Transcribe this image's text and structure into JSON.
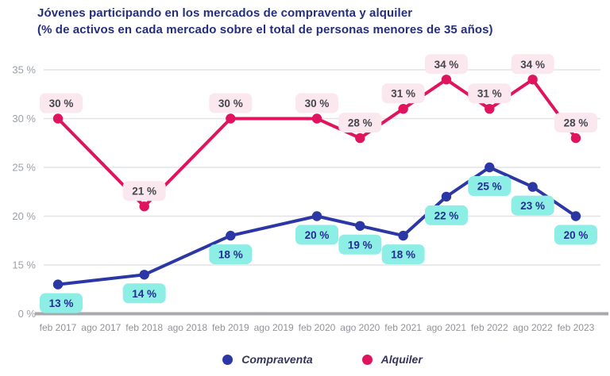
{
  "chart_data": {
    "type": "line",
    "title": "Jóvenes participando en los mercados de compraventa y alquiler",
    "subtitle": "(% de activos en cada mercado sobre el total de personas menores de 35 años)",
    "categories": [
      "feb 2017",
      "ago 2017",
      "feb 2018",
      "ago 2018",
      "feb 2019",
      "ago 2019",
      "feb 2020",
      "ago 2020",
      "feb 2021",
      "ago 2021",
      "feb 2022",
      "ago 2022",
      "feb 2023"
    ],
    "series": [
      {
        "name": "Compraventa",
        "color": "#2c37a6",
        "label_bg": "#8deee6",
        "label_color": "#222e8e",
        "label_position": "below",
        "x": [
          "feb 2017",
          "feb 2018",
          "feb 2019",
          "feb 2020",
          "ago 2020",
          "feb 2021",
          "ago 2021",
          "feb 2022",
          "ago 2022",
          "feb 2023"
        ],
        "values": [
          13,
          14,
          18,
          20,
          19,
          18,
          22,
          25,
          23,
          20
        ]
      },
      {
        "name": "Alquiler",
        "color": "#e0145e",
        "label_bg": "#fbe7ee",
        "label_color": "#45454d",
        "label_position": "above",
        "x": [
          "feb 2017",
          "feb 2018",
          "feb 2019",
          "feb 2020",
          "ago 2020",
          "feb 2021",
          "ago 2021",
          "feb 2022",
          "ago 2022",
          "feb 2023"
        ],
        "values": [
          30,
          21,
          30,
          30,
          28,
          31,
          34,
          31,
          34,
          28
        ]
      }
    ],
    "unit": "%",
    "y_ticks": [
      {
        "value": 0,
        "label": "0 %"
      },
      {
        "value": 15,
        "label": "15 %"
      },
      {
        "value": 20,
        "label": "20 %"
      },
      {
        "value": 25,
        "label": "25 %"
      },
      {
        "value": 30,
        "label": "30 %"
      },
      {
        "value": 35,
        "label": "35 %"
      }
    ],
    "axis_note": "broken axis: 0 % baseline, linear from 15 % to 35 %",
    "grid": "horizontal",
    "legend_position": "bottom",
    "colors": {
      "title": "#232e7f",
      "y_tick_label": "#9ba0a8",
      "x_tick_label": "#8f9399",
      "gridline": "#e3e3e6",
      "baseline": "#a9a9ad"
    }
  }
}
